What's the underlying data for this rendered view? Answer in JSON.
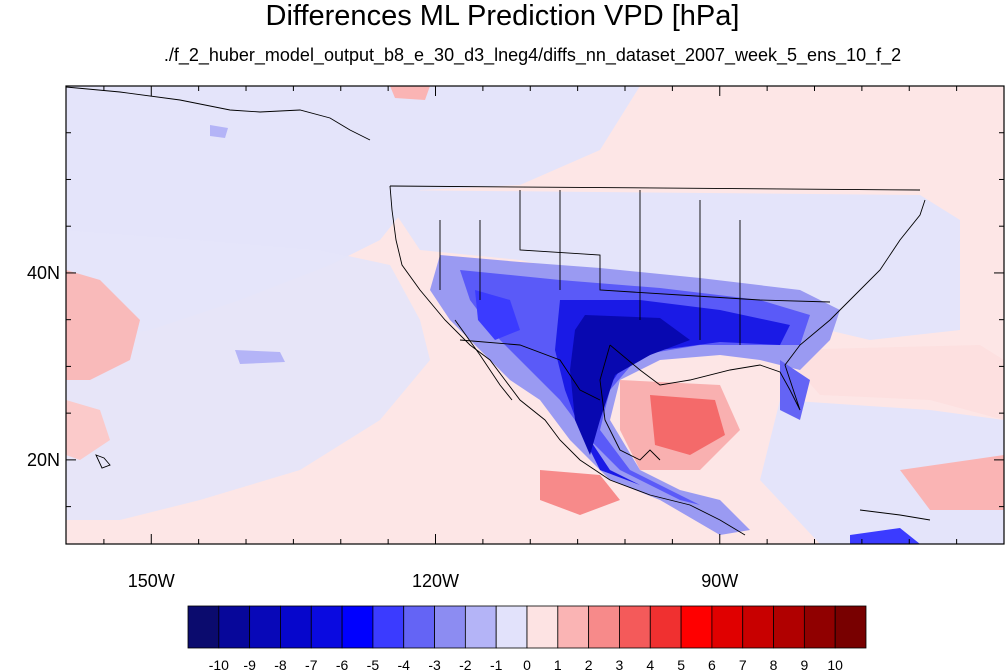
{
  "title": "Differences ML Prediction VPD [hPa]",
  "subtitle": "./f_2_huber_model_output_b8_e_30_d3_lneg4/diffs_nn_dataset_2007_week_5_ens_10_f_2",
  "map": {
    "lon_labels": [
      {
        "lon": -150,
        "label": "150W"
      },
      {
        "lon": -120,
        "label": "120W"
      },
      {
        "lon": -90,
        "label": "90W"
      }
    ],
    "lat_labels": [
      {
        "lat": 40,
        "label": "40N"
      },
      {
        "lat": 20,
        "label": "20N"
      }
    ],
    "lon_range": [
      -159,
      -60
    ],
    "lat_range": [
      11,
      60
    ]
  },
  "colorbar": {
    "labels": [
      "-10",
      "-9",
      "-8",
      "-7",
      "-6",
      "-5",
      "-4",
      "-3",
      "-2",
      "-1",
      "0",
      "1",
      "2",
      "3",
      "4",
      "5",
      "6",
      "7",
      "8",
      "9",
      "10"
    ],
    "colors": [
      "#0b0b6e",
      "#07079a",
      "#0808b8",
      "#0606cc",
      "#0a0ae0",
      "#0000ff",
      "#3b3bff",
      "#6464f5",
      "#8c8cf2",
      "#b4b4f7",
      "#e2e2fb",
      "#fde3e3",
      "#fab4b4",
      "#f78a8a",
      "#f45a5a",
      "#f03030",
      "#ff0000",
      "#e00000",
      "#c80000",
      "#b00000",
      "#900000",
      "#780000"
    ]
  }
}
